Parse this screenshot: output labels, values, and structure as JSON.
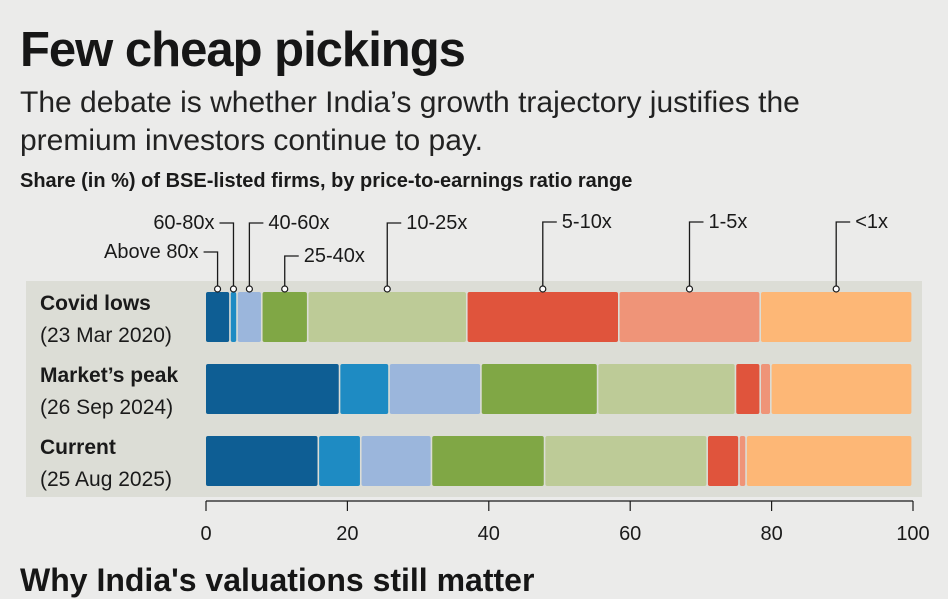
{
  "title": "Few cheap pickings",
  "subtitle": "The debate is whether India’s growth trajectory justifies the premium investors continue to pay.",
  "description": "Share (in %) of BSE-listed firms, by price-to-earnings ratio range",
  "bottom_teaser": "Why India's valuations still matter",
  "colors": {
    "Above 80x": "#0e5e94",
    "60-80x": "#1e8bc3",
    "40-60x": "#9bb6dc",
    "25-40x": "#80a745",
    "10-25x": "#bdcb97",
    "5-10x": "#e0543c",
    "1-5x": "#ef9478",
    "<1x": "#fdb776"
  },
  "chart_data": {
    "type": "bar",
    "orientation": "horizontal",
    "stacked": true,
    "categories": [
      {
        "name": "Covid lows",
        "date": "(23 Mar 2020)"
      },
      {
        "name": "Market’s peak",
        "date": "(26 Sep 2024)"
      },
      {
        "name": "Current",
        "date": "(25 Aug 2025)"
      }
    ],
    "series": [
      {
        "name": "Above 80x",
        "values": [
          3.5,
          19,
          16
        ]
      },
      {
        "name": "60-80x",
        "values": [
          1,
          7,
          6
        ]
      },
      {
        "name": "40-60x",
        "values": [
          3.5,
          13,
          10
        ]
      },
      {
        "name": "25-40x",
        "values": [
          6.5,
          16.5,
          16
        ]
      },
      {
        "name": "10-25x",
        "values": [
          22.5,
          19.5,
          23
        ]
      },
      {
        "name": "5-10x",
        "values": [
          21.5,
          3.5,
          4.5
        ]
      },
      {
        "name": "1-5x",
        "values": [
          20,
          1.5,
          1
        ]
      },
      {
        "name": "<1x",
        "values": [
          21.5,
          20,
          23.5
        ]
      }
    ],
    "xlim": [
      0,
      100
    ],
    "xticks": [
      0,
      20,
      40,
      60,
      80,
      100
    ],
    "xlabel": "",
    "ylabel": "",
    "legend": "inline-annotated-above-first-bar",
    "grid": false
  }
}
